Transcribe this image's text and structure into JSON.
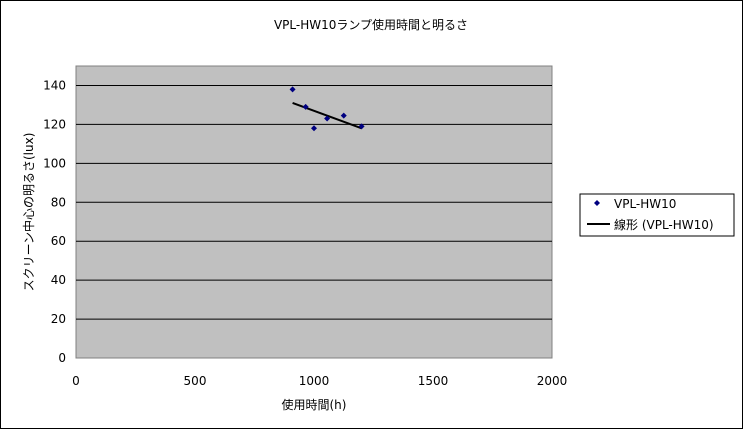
{
  "chart_data": {
    "type": "scatter",
    "title": "VPL-HW10ランプ使用時間と明るさ",
    "xlabel": "使用時間(h)",
    "ylabel": "スクリーン中心の明るさ(lux)",
    "xlim": [
      0,
      2000
    ],
    "ylim": [
      0,
      150
    ],
    "xticks": [
      "0",
      "500",
      "1000",
      "1500",
      "2000"
    ],
    "yticks": [
      "0",
      "20",
      "40",
      "60",
      "80",
      "100",
      "120",
      "140"
    ],
    "grid": true,
    "legend_position": "right",
    "series": [
      {
        "name": "VPL-HW10",
        "marker": "diamond",
        "color": "#000080",
        "points": [
          {
            "x": 910,
            "y": 138
          },
          {
            "x": 965,
            "y": 129
          },
          {
            "x": 1000,
            "y": 118
          },
          {
            "x": 1055,
            "y": 123
          },
          {
            "x": 1125,
            "y": 124.5
          },
          {
            "x": 1200,
            "y": 119
          }
        ]
      }
    ],
    "trendline": {
      "name": "線形 (VPL-HW10)",
      "type": "linear",
      "color": "#000000",
      "x_range": [
        910,
        1200
      ],
      "y_range": [
        131,
        118
      ]
    },
    "colors": {
      "plot_background": "#c0c0c0",
      "chart_background": "#ffffff",
      "gridline": "#000000"
    }
  }
}
